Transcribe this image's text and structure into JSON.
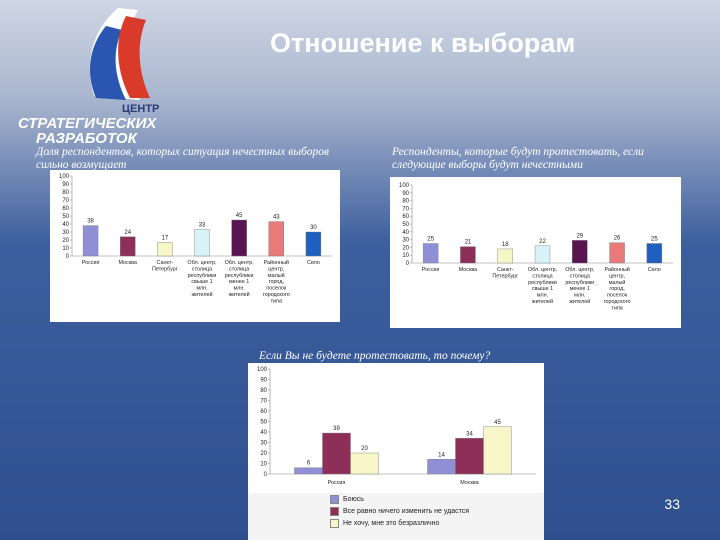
{
  "title": "Отношение к выборам",
  "logo": {
    "line1": "ЦЕНТР",
    "line2": "СТРАТЕГИЧЕСКИХ",
    "line3": "РАЗРАБОТОК"
  },
  "page_number": "33",
  "colors": {
    "text_on_dark": "#ffffff",
    "flag_white": "#ffffff",
    "flag_blue": "#2a55b0",
    "flag_red": "#d93a2a"
  },
  "chart_data": [
    {
      "type": "bar",
      "title": "Доля респондентов, которых ситуация нечестных выборов сильно возмущает",
      "ylim": [
        0,
        100
      ],
      "yticks": [
        "100",
        "90",
        "80",
        "70",
        "60",
        "50",
        "40",
        "30",
        "20",
        "10",
        "0"
      ],
      "categories": [
        "Россия",
        "Москва",
        "Санкт-Петербург",
        "Обл. центр, столица республики свыше 1 млн. жителей",
        "Обл. центр, столица республики менее 1 млн. жителей",
        "Районный центр, малый город, поселок городского типа",
        "Село"
      ],
      "category_lines": [
        [
          "Россия"
        ],
        [
          "Москва"
        ],
        [
          "Санкт-",
          "Петербург"
        ],
        [
          "Обл. центр,",
          "столица",
          "республики",
          "свыше 1",
          "млн.",
          "жителей"
        ],
        [
          "Обл. центр,",
          "столица",
          "республики",
          "менее 1",
          "млн.",
          "жителей"
        ],
        [
          "Районный",
          "центр,",
          "малый",
          "город,",
          "поселок",
          "городского",
          "типа"
        ],
        [
          "Село"
        ]
      ],
      "values": [
        38,
        24,
        17,
        33,
        45,
        43,
        30
      ],
      "colors": [
        "#8f8fd6",
        "#8e2f5a",
        "#f6f6c8",
        "#d8f2f8",
        "#5a1452",
        "#e87a7a",
        "#1f5fc0"
      ]
    },
    {
      "type": "bar",
      "title": "Респонденты, которые будут протестовать, если следующие выборы будут нечестными",
      "ylim": [
        0,
        100
      ],
      "yticks": [
        "100",
        "90",
        "80",
        "70",
        "60",
        "50",
        "40",
        "30",
        "20",
        "10",
        "0"
      ],
      "categories": [
        "Россия",
        "Москва",
        "Санкт-Петербург",
        "Обл. центр, столица республики свыше 1 млн. жителей",
        "Обл. центр, столица республики менее 1 млн. жителей",
        "Районный центр, малый город, поселок городского типа",
        "Село"
      ],
      "category_lines": [
        [
          "Россия"
        ],
        [
          "Москва"
        ],
        [
          "Санкт-",
          "Петербург"
        ],
        [
          "Обл. центр,",
          "столица",
          "республики",
          "свыше 1",
          "млн.",
          "жителей"
        ],
        [
          "Обл. центр,",
          "столица",
          "республики",
          "менее 1",
          "млн.",
          "жителей"
        ],
        [
          "Районный",
          "центр,",
          "малый",
          "город,",
          "поселок",
          "городского",
          "типа"
        ],
        [
          "Село"
        ]
      ],
      "values": [
        25,
        21,
        18,
        22,
        29,
        26,
        25
      ],
      "colors": [
        "#8f8fd6",
        "#8e2f5a",
        "#f6f6c8",
        "#d8f2f8",
        "#5a1452",
        "#e87a7a",
        "#1f5fc0"
      ]
    },
    {
      "type": "bar",
      "title": "Если Вы не будете протестовать, то почему?",
      "ylim": [
        0,
        100
      ],
      "yticks": [
        "100",
        "90",
        "80",
        "70",
        "60",
        "50",
        "40",
        "30",
        "20",
        "10",
        "0"
      ],
      "categories": [
        "Россия",
        "Москва"
      ],
      "series": [
        {
          "name": "Боюсь",
          "values": [
            6,
            14
          ],
          "color": "#8f8fd6"
        },
        {
          "name": "Все равно ничего изменить не удастся",
          "values": [
            39,
            34
          ],
          "color": "#8e2f5a"
        },
        {
          "name": "Не хочу, мне это безразлично",
          "values": [
            20,
            45
          ],
          "color": "#f6f6c8"
        }
      ]
    }
  ]
}
